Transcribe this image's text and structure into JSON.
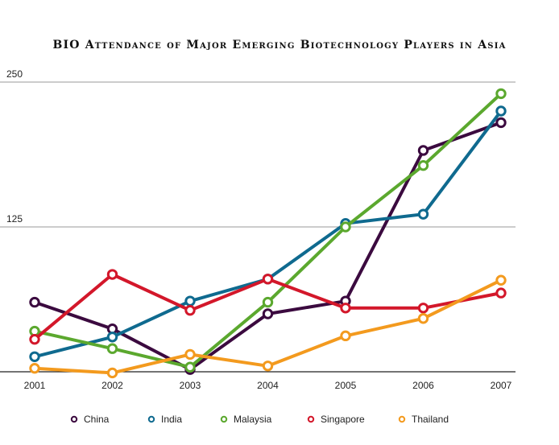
{
  "chart_data": {
    "type": "line",
    "title": "BIO Attendance of Major Emerging Biotechnology Players in Asia",
    "xlabel": "",
    "ylabel": "",
    "x": [
      "2001",
      "2002",
      "2003",
      "2004",
      "2005",
      "2006",
      "2007"
    ],
    "ylim": [
      0,
      250
    ],
    "yticks": [
      125,
      250
    ],
    "grid": true,
    "legend_position": "bottom",
    "series": [
      {
        "name": "China",
        "color": "#3b0a3f",
        "values": [
          60,
          37,
          2,
          50,
          61,
          191,
          215
        ]
      },
      {
        "name": "India",
        "color": "#0f6a8f",
        "values": [
          13,
          30,
          61,
          80,
          128,
          136,
          225
        ]
      },
      {
        "name": "Malaysia",
        "color": "#5ba82e",
        "values": [
          35,
          20,
          4,
          60,
          125,
          178,
          240
        ]
      },
      {
        "name": "Singapore",
        "color": "#d3172a",
        "values": [
          28,
          84,
          53,
          80,
          55,
          55,
          68
        ]
      },
      {
        "name": "Thailand",
        "color": "#f39a1e",
        "values": [
          3,
          -1,
          15,
          5,
          31,
          46,
          79
        ]
      }
    ]
  }
}
